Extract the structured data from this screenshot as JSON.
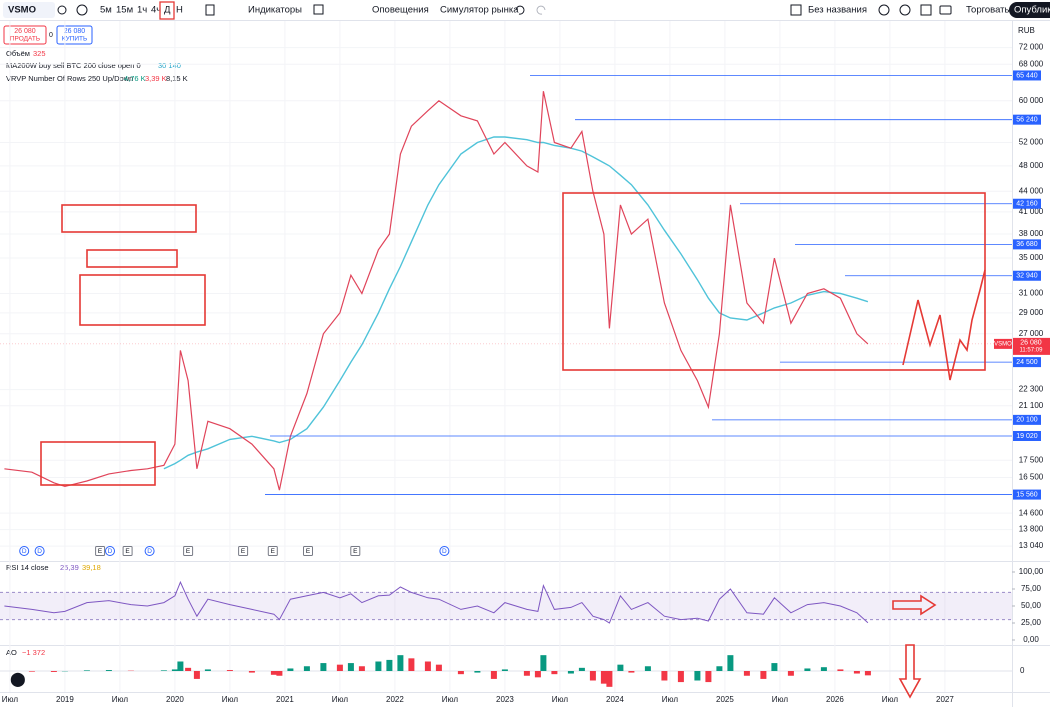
{
  "toolbar": {
    "symbol": "VSMO",
    "intervals": [
      "5м",
      "15м",
      "1ч",
      "4ч",
      "Д",
      "Н"
    ],
    "indicators": "Индикаторы",
    "alerts": "Оповещения",
    "replay": "Симулятор рынка",
    "layout_name": "Без названия",
    "trade": "Торговать",
    "publish": "Опубликовать"
  },
  "order_panel": {
    "sell_price": "26 080",
    "sell": "ПРОДАТЬ",
    "spread": "0",
    "buy_price": "26 080",
    "buy": "КУПИТЬ"
  },
  "legend": {
    "volume": "Объём",
    "volume_value": "325",
    "ma_value": "30 140",
    "vrvp": "VRVP Number Of Rows 250 Up/Down",
    "vrvp_values": [
      "4,76 K",
      "3,39 K",
      "8,15 K"
    ],
    "rsi": "RSI 14 close",
    "rsi_values": [
      "25,39",
      "39,18"
    ],
    "ao": "AO",
    "ao_value": "−1 372"
  },
  "chart_data": [
    {
      "type": "line",
      "currency": "RUB",
      "log_scale": true,
      "x": [
        2018.45,
        2018.7,
        2018.9,
        2019.0,
        2019.2,
        2019.4,
        2019.6,
        2019.75,
        2019.9,
        2020.0,
        2020.05,
        2020.12,
        2020.2,
        2020.3,
        2020.5,
        2020.7,
        2020.9,
        2020.95,
        2021.05,
        2021.2,
        2021.35,
        2021.5,
        2021.6,
        2021.7,
        2021.85,
        2021.95,
        2022.05,
        2022.15,
        2022.3,
        2022.4,
        2022.6,
        2022.75,
        2022.9,
        2023.0,
        2023.2,
        2023.3,
        2023.35,
        2023.45,
        2023.6,
        2023.7,
        2023.8,
        2023.9,
        2023.95,
        2024.05,
        2024.15,
        2024.3,
        2024.45,
        2024.6,
        2024.75,
        2024.85,
        2024.95,
        2025.05,
        2025.2,
        2025.35,
        2025.45,
        2025.6,
        2025.75,
        2025.9,
        2026.05,
        2026.2,
        2026.3
      ],
      "series": [
        {
          "name": "VSMO",
          "color": "#e0445a",
          "values": [
            17000,
            16800,
            16200,
            16000,
            16300,
            16700,
            16900,
            17000,
            17200,
            18500,
            25500,
            23000,
            17000,
            20000,
            19500,
            18500,
            17000,
            15800,
            19000,
            22000,
            27000,
            29000,
            33000,
            31000,
            36000,
            38000,
            50000,
            55000,
            58000,
            60000,
            57000,
            56000,
            50000,
            52000,
            48000,
            47000,
            62000,
            52000,
            51000,
            54000,
            44000,
            38000,
            27500,
            42000,
            38000,
            40000,
            30000,
            25500,
            23000,
            21000,
            27000,
            42000,
            30000,
            28000,
            35000,
            28000,
            31000,
            31500,
            30500,
            27000,
            26080
          ]
        },
        {
          "name": "MA200W buy sell BTC 200 close open 0",
          "color": "#4fc3d9",
          "values": [
            null,
            null,
            null,
            null,
            null,
            null,
            null,
            null,
            17000,
            17300,
            17500,
            17800,
            18000,
            18200,
            18800,
            19000,
            18700,
            18600,
            18800,
            19500,
            21000,
            23000,
            24500,
            26000,
            29000,
            31500,
            34000,
            37000,
            42000,
            45000,
            50000,
            52000,
            53000,
            53000,
            52500,
            52000,
            52000,
            51500,
            51000,
            50500,
            49500,
            48500,
            48000,
            46500,
            45000,
            42000,
            38500,
            35500,
            32500,
            30500,
            29000,
            28500,
            28300,
            29000,
            29500,
            30000,
            30800,
            31200,
            31000,
            30500,
            30140
          ]
        }
      ],
      "xlim": [
        2018.41,
        2027.61
      ],
      "xticks": [
        {
          "value": 2018.5,
          "label": "Июл"
        },
        2019,
        {
          "value": 2019.5,
          "label": "Июл"
        },
        2020,
        {
          "value": 2020.5,
          "label": "Июл"
        },
        2021,
        {
          "value": 2021.5,
          "label": "Июл"
        },
        2022,
        {
          "value": 2022.5,
          "label": "Июл"
        },
        2023,
        {
          "value": 2023.5,
          "label": "Июл"
        },
        2024,
        {
          "value": 2024.5,
          "label": "Июл"
        },
        2025,
        {
          "value": 2025.5,
          "label": "Июл"
        },
        2026,
        {
          "value": 2026.5,
          "label": "Июл"
        },
        2027
      ],
      "ylim": [
        12520,
        77000
      ],
      "yticks": [
        {
          "value": 72000,
          "label": "72 000"
        },
        {
          "value": 68000,
          "label": "68 000"
        },
        {
          "value": 60000,
          "label": "60 000"
        },
        {
          "value": 52000,
          "label": "52 000"
        },
        {
          "value": 48000,
          "label": "48 000"
        },
        {
          "value": 44000,
          "label": "44 000"
        },
        {
          "value": 41000,
          "label": "41 000"
        },
        {
          "value": 38000,
          "label": "38 000"
        },
        {
          "value": 35000,
          "label": "35 000"
        },
        {
          "value": 31000,
          "label": "31 000"
        },
        {
          "value": 29000,
          "label": "29 000"
        },
        {
          "value": 27000,
          "label": "27 000"
        },
        {
          "value": 22300,
          "label": "22 300"
        },
        {
          "value": 21100,
          "label": "21 100"
        },
        {
          "value": 17500,
          "label": "17 500"
        },
        {
          "value": 16500,
          "label": "16 500"
        },
        {
          "value": 14600,
          "label": "14 600"
        },
        {
          "value": 13800,
          "label": "13 800"
        },
        {
          "value": 13040,
          "label": "13 040"
        }
      ],
      "levels": [
        {
          "value": 65440,
          "label": "65 440"
        },
        {
          "value": 56240,
          "label": "56 240"
        },
        {
          "value": 42160,
          "label": "42 160"
        },
        {
          "value": 36680,
          "label": "36 680"
        },
        {
          "value": 32940,
          "label": "32 940"
        },
        {
          "value": 24500,
          "label": "24 500"
        },
        {
          "value": 20100,
          "label": "20 100"
        },
        {
          "value": 19020,
          "label": "19 020"
        },
        {
          "value": 15560,
          "label": "15 560"
        }
      ],
      "level_color": "#2962ff",
      "last_price": {
        "value": 26080,
        "label": "26 080",
        "time": "11:57:09"
      },
      "events": [
        {
          "x": 2018.63,
          "label": "D"
        },
        {
          "x": 2018.77,
          "label": "D"
        },
        {
          "x": 2019.32,
          "label": "E"
        },
        {
          "x": 2019.41,
          "label": "D"
        },
        {
          "x": 2019.57,
          "label": "E"
        },
        {
          "x": 2019.77,
          "label": "D"
        },
        {
          "x": 2020.12,
          "label": "E"
        },
        {
          "x": 2020.62,
          "label": "E"
        },
        {
          "x": 2020.89,
          "label": "E"
        },
        {
          "x": 2021.21,
          "label": "E"
        },
        {
          "x": 2021.64,
          "label": "E"
        },
        {
          "x": 2022.45,
          "label": "D"
        }
      ]
    },
    {
      "type": "line",
      "color": "#7e57c2",
      "band": [
        30,
        70
      ],
      "values": [
        50,
        45,
        40,
        42,
        55,
        58,
        52,
        50,
        55,
        65,
        85,
        60,
        35,
        60,
        52,
        45,
        38,
        30,
        60,
        65,
        70,
        62,
        68,
        55,
        65,
        66,
        78,
        70,
        62,
        60,
        45,
        50,
        40,
        55,
        45,
        42,
        80,
        45,
        48,
        55,
        35,
        30,
        25,
        65,
        45,
        55,
        35,
        30,
        32,
        28,
        60,
        75,
        40,
        38,
        62,
        40,
        52,
        55,
        50,
        40,
        25.39
      ],
      "ylim": [
        0,
        100
      ],
      "yticks": [
        {
          "value": 100,
          "label": "100,00"
        },
        {
          "value": 75,
          "label": "75,00"
        },
        {
          "value": 50,
          "label": "50,00"
        },
        {
          "value": 25,
          "label": "25,00"
        },
        {
          "value": 0,
          "label": "0,00"
        }
      ]
    },
    {
      "type": "bar",
      "up_color": "#089981",
      "down_color": "#f23645",
      "values": [
        0,
        -200,
        -300,
        -100,
        200,
        300,
        100,
        0,
        200,
        500,
        3000,
        1000,
        -2500,
        500,
        300,
        -500,
        -1200,
        -1500,
        800,
        1500,
        2500,
        2000,
        2500,
        1500,
        3000,
        3500,
        5000,
        4000,
        3000,
        2000,
        -1000,
        -500,
        -2500,
        500,
        -1500,
        -2000,
        5000,
        -1000,
        -800,
        1000,
        -3000,
        -4000,
        -5000,
        2000,
        -500,
        1500,
        -3000,
        -3500,
        -3000,
        -3500,
        1500,
        5000,
        -1500,
        -2500,
        2500,
        -1500,
        800,
        1200,
        500,
        -800,
        -1372
      ],
      "ylim": [
        -6000,
        6000
      ],
      "yticks": [
        0
      ]
    }
  ]
}
